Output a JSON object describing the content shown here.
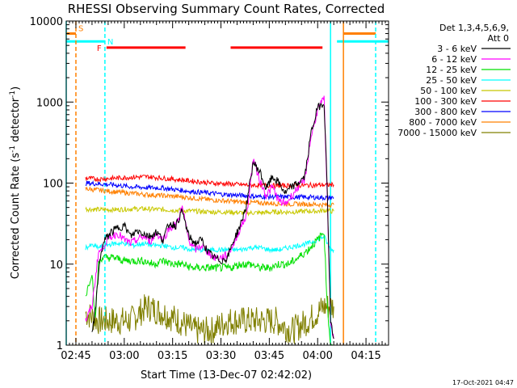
{
  "chart_data": {
    "type": "line",
    "title": "RHESSI Observing Summary Count Rates, Corrected",
    "xlabel": "Start Time (13-Dec-07 02:42:02)",
    "ylabel": "Corrected Count Rate (s",
    "ylabel_sup1": "-1",
    "ylabel_mid": " detector",
    "ylabel_sup2": "-1",
    "ylabel_end": ")",
    "yscale": "log",
    "ylim": [
      1,
      10000
    ],
    "xlim_minutes": [
      0,
      100
    ],
    "x_ticks": [
      {
        "label": "02:45",
        "min": 3
      },
      {
        "label": "03:00",
        "min": 18
      },
      {
        "label": "03:15",
        "min": 33
      },
      {
        "label": "03:30",
        "min": 48
      },
      {
        "label": "03:45",
        "min": 63
      },
      {
        "label": "04:00",
        "min": 78
      },
      {
        "label": "04:15",
        "min": 93
      }
    ],
    "y_ticks": [
      {
        "label": "1",
        "v": 1
      },
      {
        "label": "10",
        "v": 10
      },
      {
        "label": "100",
        "v": 100
      },
      {
        "label": "1000",
        "v": 1000
      },
      {
        "label": "10000",
        "v": 10000
      }
    ],
    "legend": {
      "header1": "Det 1,3,4,5,6,9,",
      "header2": "Att 0",
      "placement": "right"
    },
    "series": [
      {
        "name": "3 - 6 keV",
        "color": "#000000",
        "x": [
          8,
          9,
          10,
          11,
          12,
          14,
          16,
          18,
          20,
          22,
          24,
          26,
          28,
          30,
          32,
          34,
          36,
          38,
          40,
          42,
          44,
          46,
          48,
          50,
          52,
          54,
          56,
          58,
          60,
          62,
          64,
          66,
          68,
          70,
          72,
          74,
          76,
          78,
          80,
          81,
          82,
          83
        ],
        "y": [
          1.5,
          2.5,
          8,
          15,
          20,
          25,
          28,
          30,
          22,
          26,
          24,
          22,
          25,
          20,
          32,
          30,
          45,
          22,
          18,
          20,
          14,
          12,
          11,
          12,
          20,
          30,
          55,
          180,
          140,
          85,
          120,
          100,
          75,
          90,
          100,
          120,
          420,
          850,
          1000,
          80,
          2,
          1.2
        ]
      },
      {
        "name": "6 - 12 keV",
        "color": "#ff00ff",
        "x": [
          6,
          8,
          10,
          11,
          12,
          14,
          16,
          18,
          20,
          22,
          24,
          26,
          28,
          30,
          32,
          34,
          36,
          38,
          40,
          42,
          44,
          46,
          48,
          50,
          52,
          54,
          56,
          58,
          60,
          62,
          64,
          66,
          68,
          70,
          72,
          74,
          76,
          78,
          80,
          81,
          82,
          83
        ],
        "y": [
          2,
          3,
          14,
          15,
          18,
          22,
          24,
          20,
          18,
          20,
          22,
          19,
          24,
          20,
          28,
          30,
          50,
          20,
          15,
          17,
          14,
          12,
          12,
          13,
          18,
          28,
          40,
          200,
          110,
          70,
          90,
          60,
          55,
          70,
          90,
          110,
          380,
          800,
          1100,
          60,
          2,
          1.2
        ]
      },
      {
        "name": "12 - 25 keV",
        "color": "#00e000",
        "x": [
          6,
          8,
          9,
          10,
          11,
          12,
          15,
          18,
          21,
          24,
          27,
          30,
          33,
          36,
          39,
          42,
          45,
          48,
          51,
          54,
          57,
          60,
          63,
          66,
          69,
          72,
          75,
          78,
          80,
          81,
          82,
          83
        ],
        "y": [
          4,
          8,
          2,
          10,
          12,
          12,
          12,
          11,
          11,
          11,
          10,
          11,
          10,
          10,
          9,
          9,
          9,
          9,
          9,
          10,
          10,
          9,
          9,
          10,
          10,
          12,
          15,
          20,
          25,
          3,
          1,
          1
        ]
      },
      {
        "name": "25 - 50 keV",
        "color": "#00ffff",
        "x": [
          6,
          8,
          10,
          12,
          15,
          18,
          21,
          24,
          27,
          30,
          33,
          36,
          39,
          42,
          45,
          48,
          51,
          54,
          57,
          60,
          63,
          66,
          69,
          72,
          75,
          78,
          80,
          81,
          82,
          83
        ],
        "y": [
          16,
          17,
          16,
          17,
          18,
          18,
          17,
          18,
          17,
          17,
          16,
          16,
          15,
          15,
          15,
          15,
          15,
          15,
          16,
          16,
          15,
          15,
          16,
          17,
          18,
          20,
          22,
          18,
          15,
          15
        ]
      },
      {
        "name": "50 - 100 keV",
        "color": "#c8c800",
        "x": [
          6,
          10,
          15,
          20,
          25,
          30,
          35,
          40,
          45,
          50,
          55,
          60,
          65,
          70,
          75,
          78,
          80,
          81,
          82,
          83
        ],
        "y": [
          48,
          47,
          47,
          48,
          48,
          47,
          46,
          45,
          44,
          44,
          43,
          43,
          44,
          44,
          45,
          45,
          46,
          46,
          45,
          45
        ]
      },
      {
        "name": "100 - 300 keV",
        "color": "#ff0000",
        "x": [
          6,
          10,
          15,
          20,
          25,
          30,
          35,
          40,
          45,
          50,
          55,
          60,
          65,
          70,
          75,
          80,
          83
        ],
        "y": [
          115,
          112,
          115,
          118,
          120,
          115,
          110,
          105,
          100,
          98,
          95,
          94,
          93,
          93,
          94,
          95,
          95
        ]
      },
      {
        "name": "300 - 800 keV",
        "color": "#0000ff",
        "x": [
          6,
          10,
          15,
          20,
          25,
          30,
          35,
          40,
          45,
          50,
          55,
          60,
          65,
          70,
          75,
          80,
          83
        ],
        "y": [
          100,
          98,
          95,
          90,
          88,
          87,
          82,
          78,
          75,
          72,
          70,
          68,
          68,
          67,
          67,
          66,
          66
        ]
      },
      {
        "name": "800 - 7000 keV",
        "color": "#ff8000",
        "x": [
          6,
          10,
          15,
          20,
          25,
          30,
          35,
          40,
          45,
          50,
          55,
          60,
          65,
          70,
          75,
          80,
          83
        ],
        "y": [
          85,
          82,
          78,
          75,
          72,
          70,
          68,
          65,
          62,
          60,
          58,
          57,
          56,
          55,
          55,
          54,
          54
        ]
      },
      {
        "name": "7000 - 15000 keV",
        "color": "#808000",
        "x": [
          6,
          10,
          15,
          20,
          25,
          30,
          35,
          40,
          45,
          50,
          55,
          60,
          65,
          70,
          75,
          80,
          83
        ],
        "y": [
          2.5,
          2,
          2,
          2,
          3,
          2.5,
          2,
          1.5,
          1.5,
          2,
          2,
          2,
          2,
          1.5,
          2,
          3,
          3
        ]
      }
    ],
    "flags": [
      {
        "label": "S",
        "color": "#ff8000",
        "y": 7000,
        "segments": [
          [
            0,
            3
          ],
          [
            86,
            96
          ]
        ]
      },
      {
        "label": "N",
        "color": "#00ffff",
        "y": 5600,
        "segments": [
          [
            0,
            12
          ],
          [
            84,
            100
          ]
        ]
      },
      {
        "label": "F",
        "color": "#ff0000",
        "y": 4700,
        "segments": [
          [
            12.5,
            37
          ],
          [
            51,
            79.5
          ]
        ]
      }
    ],
    "vertical_markers": [
      {
        "color": "#00ffff",
        "min": 0,
        "dashed": false
      },
      {
        "color": "#ff8000",
        "min": 3,
        "dashed": true
      },
      {
        "color": "#00ffff",
        "min": 12,
        "dashed": true
      },
      {
        "color": "#00ffff",
        "min": 82,
        "dashed": false
      },
      {
        "color": "#ff8000",
        "min": 86,
        "dashed": false
      },
      {
        "color": "#00ffff",
        "min": 96,
        "dashed": true
      }
    ]
  },
  "footer": {
    "timestamp": "17-Oct-2021 04:47"
  }
}
